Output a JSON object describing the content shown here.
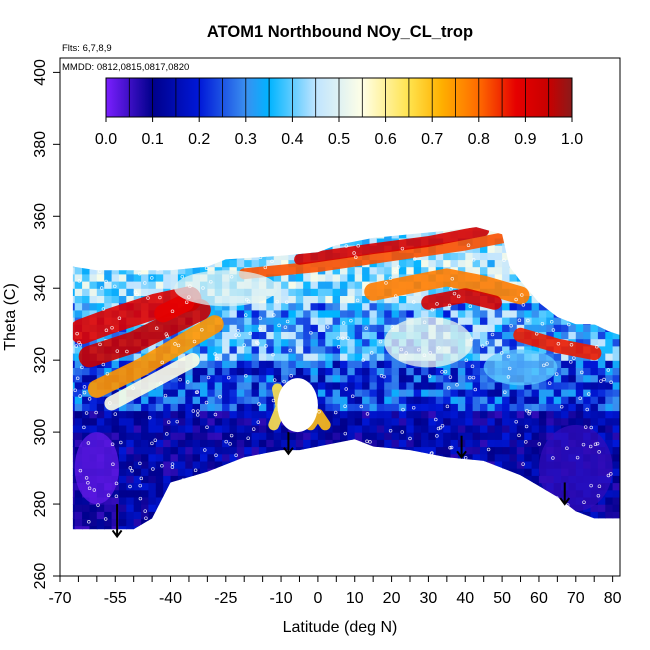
{
  "chart_data": {
    "type": "heatmap",
    "title": "ATOM1 Northbound NOy_CL_trop",
    "annotations": [
      "Flts: 6,7,8,9",
      "MMDD: 0812,0815,0817,0820"
    ],
    "xlabel": "Latitude (deg N)",
    "ylabel": "Theta (C)",
    "xlim": [
      -70,
      82
    ],
    "ylim": [
      260,
      404
    ],
    "x_tick_labels": [
      "-70",
      "-55",
      "-40",
      "-25",
      "-10",
      "0",
      "10",
      "20",
      "30",
      "40",
      "50",
      "60",
      "70",
      "80"
    ],
    "x_tick_values": [
      -70,
      -55,
      -40,
      -25,
      -10,
      0,
      10,
      20,
      30,
      40,
      50,
      60,
      70,
      80
    ],
    "x_minor_step": 5,
    "y_tick_labels": [
      "260",
      "280",
      "300",
      "320",
      "340",
      "360",
      "380",
      "400"
    ],
    "y_tick_values": [
      260,
      280,
      300,
      320,
      340,
      360,
      380,
      400
    ],
    "colorbar": {
      "range": [
        0,
        1
      ],
      "tick_labels": [
        "0.0",
        "0.1",
        "0.2",
        "0.3",
        "0.4",
        "0.5",
        "0.6",
        "0.7",
        "0.8",
        "0.9",
        "1.0"
      ],
      "tick_values": [
        0,
        0.1,
        0.2,
        0.3,
        0.4,
        0.5,
        0.6,
        0.7,
        0.8,
        0.9,
        1.0
      ],
      "stops": [
        {
          "v": 0.0,
          "c": "#7b1fff"
        },
        {
          "v": 0.1,
          "c": "#00008b"
        },
        {
          "v": 0.2,
          "c": "#0018d8"
        },
        {
          "v": 0.3,
          "c": "#3a8ff0"
        },
        {
          "v": 0.35,
          "c": "#00b4ff"
        },
        {
          "v": 0.45,
          "c": "#bfe4ff"
        },
        {
          "v": 0.55,
          "c": "#ffffe6"
        },
        {
          "v": 0.65,
          "c": "#ffe34d"
        },
        {
          "v": 0.72,
          "c": "#ffb000"
        },
        {
          "v": 0.8,
          "c": "#ff6a00"
        },
        {
          "v": 0.88,
          "c": "#e60000"
        },
        {
          "v": 0.95,
          "c": "#c80000"
        },
        {
          "v": 1.0,
          "c": "#8b1a1a"
        }
      ]
    },
    "coverage": {
      "top": [
        [
          -66.5,
          346
        ],
        [
          -60,
          345
        ],
        [
          -50,
          345
        ],
        [
          -40,
          345
        ],
        [
          -30,
          346
        ],
        [
          -25,
          348
        ],
        [
          -10,
          349
        ],
        [
          0,
          350
        ],
        [
          5,
          352
        ],
        [
          15,
          354
        ],
        [
          25,
          355
        ],
        [
          35,
          356
        ],
        [
          43,
          357
        ],
        [
          50,
          355
        ],
        [
          52,
          346
        ],
        [
          55,
          342
        ],
        [
          60,
          336
        ],
        [
          65,
          332
        ],
        [
          70,
          330
        ],
        [
          75,
          330
        ],
        [
          79,
          328
        ],
        [
          82,
          327
        ]
      ],
      "upper_extension_top": [
        [
          -7,
          350
        ],
        [
          5,
          352
        ],
        [
          15,
          354
        ],
        [
          25,
          355
        ],
        [
          35,
          356
        ],
        [
          43,
          357
        ],
        [
          50,
          355
        ]
      ],
      "bottom": [
        [
          -66.5,
          273
        ],
        [
          -50,
          273
        ],
        [
          -45,
          276
        ],
        [
          -40,
          286
        ],
        [
          -30,
          289
        ],
        [
          -20,
          293
        ],
        [
          -10,
          295
        ],
        [
          -5,
          295
        ],
        [
          5,
          297
        ],
        [
          10,
          298
        ],
        [
          15,
          296
        ],
        [
          25,
          295
        ],
        [
          35,
          293
        ],
        [
          45,
          292
        ],
        [
          55,
          288
        ],
        [
          65,
          282
        ],
        [
          70,
          278
        ],
        [
          75,
          276
        ],
        [
          79,
          276
        ],
        [
          82,
          276
        ]
      ],
      "hole": {
        "lat": -5.5,
        "theta": 307.5,
        "rx": 5.5,
        "ry": 7.5
      }
    },
    "features": [
      {
        "kind": "band",
        "points": [
          [
            -64,
            328
          ],
          [
            -56,
            331
          ],
          [
            -44,
            335
          ],
          [
            -35,
            337
          ]
        ],
        "value": 0.9,
        "width": 7
      },
      {
        "kind": "band",
        "points": [
          [
            -62,
            321
          ],
          [
            -50,
            325
          ],
          [
            -40,
            330
          ],
          [
            -32,
            334
          ]
        ],
        "value": 0.95,
        "width": 6
      },
      {
        "kind": "band",
        "points": [
          [
            -60,
            312
          ],
          [
            -48,
            318
          ],
          [
            -38,
            324
          ],
          [
            -28,
            330
          ]
        ],
        "value": 0.75,
        "width": 5
      },
      {
        "kind": "band",
        "points": [
          [
            -56,
            308
          ],
          [
            -45,
            314
          ],
          [
            -34,
            320
          ]
        ],
        "value": 0.55,
        "width": 4
      },
      {
        "kind": "band",
        "points": [
          [
            -42,
            333
          ],
          [
            -36,
            336
          ]
        ],
        "value": 0.88,
        "width": 5
      },
      {
        "kind": "band",
        "points": [
          [
            -20,
            344
          ],
          [
            0,
            346
          ],
          [
            20,
            349
          ],
          [
            40,
            352
          ],
          [
            50,
            354
          ]
        ],
        "value": 0.82,
        "width": 3
      },
      {
        "kind": "band",
        "points": [
          [
            -5,
            348
          ],
          [
            15,
            351
          ],
          [
            30,
            353
          ],
          [
            45,
            356
          ]
        ],
        "value": 0.92,
        "width": 3
      },
      {
        "kind": "band",
        "points": [
          [
            15,
            339
          ],
          [
            25,
            341
          ],
          [
            35,
            343
          ],
          [
            45,
            341
          ],
          [
            55,
            338
          ]
        ],
        "value": 0.78,
        "width": 5
      },
      {
        "kind": "band",
        "points": [
          [
            30,
            336
          ],
          [
            40,
            338
          ],
          [
            48,
            336
          ]
        ],
        "value": 0.93,
        "width": 4
      },
      {
        "kind": "band",
        "points": [
          [
            55,
            327
          ],
          [
            65,
            324
          ],
          [
            75,
            322
          ]
        ],
        "value": 0.86,
        "width": 4
      },
      {
        "kind": "band",
        "points": [
          [
            -2,
            302
          ],
          [
            0,
            305
          ],
          [
            2,
            302
          ]
        ],
        "value": 0.7,
        "width": 3
      },
      {
        "kind": "band",
        "points": [
          [
            -12,
            302
          ],
          [
            -10,
            307
          ],
          [
            -11,
            312
          ]
        ],
        "value": 0.65,
        "width": 3
      },
      {
        "kind": "blob",
        "lat": 30,
        "theta": 325,
        "rx": 12,
        "ry": 7,
        "value": 0.52
      },
      {
        "kind": "blob",
        "lat": -25,
        "theta": 340,
        "rx": 14,
        "ry": 5,
        "value": 0.5
      },
      {
        "kind": "blob",
        "lat": 55,
        "theta": 318,
        "rx": 10,
        "ry": 5,
        "value": 0.4
      },
      {
        "kind": "blob",
        "lat": -60,
        "theta": 290,
        "rx": 6,
        "ry": 10,
        "value": 0.02
      },
      {
        "kind": "blob",
        "lat": 70,
        "theta": 290,
        "rx": 10,
        "ry": 12,
        "value": 0.06
      }
    ],
    "arrows": [
      {
        "lat": -54.5,
        "theta_top": 280,
        "theta_tip": 271
      },
      {
        "lat": -8,
        "theta_top": 300,
        "theta_tip": 294
      },
      {
        "lat": 39,
        "theta_top": 299,
        "theta_tip": 293
      },
      {
        "lat": 67,
        "theta_top": 286,
        "theta_tip": 280
      }
    ],
    "grid": false,
    "legend": "colorbar-top"
  }
}
